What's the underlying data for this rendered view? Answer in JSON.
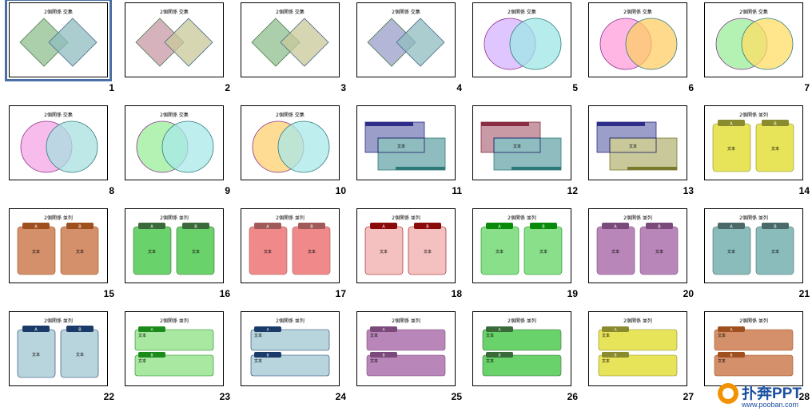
{
  "slides": [
    {
      "number": "1",
      "type": "diamond",
      "c1": "#8fbf8f",
      "c2": "#8fbcbf",
      "title": "2個関係 交集"
    },
    {
      "number": "2",
      "type": "diamond",
      "c1": "#c89aa6",
      "c2": "#c8c89a",
      "title": "2個関係 交集"
    },
    {
      "number": "3",
      "type": "diamond",
      "c1": "#8fbf8f",
      "c2": "#c8c89a",
      "title": "2個関係 交集"
    },
    {
      "number": "4",
      "type": "diamond",
      "c1": "#9a9ec8",
      "c2": "#8fbcbf",
      "title": "2個関係 交集"
    },
    {
      "number": "5",
      "type": "circle",
      "c1": "#d6b3ff",
      "c2": "#9fe6e6",
      "title": "2個関係 交集"
    },
    {
      "number": "6",
      "type": "circle",
      "c1": "#ff9edc",
      "c2": "#ffcc66",
      "title": "2個関係 交集"
    },
    {
      "number": "7",
      "type": "circle",
      "c1": "#99ee99",
      "c2": "#ffdd66",
      "title": "2個関係 交集"
    },
    {
      "number": "8",
      "type": "circle",
      "c1": "#f5a6e6",
      "c2": "#a8e0e0",
      "title": "2個関係 交集"
    },
    {
      "number": "9",
      "type": "circle",
      "c1": "#99ee99",
      "c2": "#a8e8e8",
      "title": "2個関係 交集"
    },
    {
      "number": "10",
      "type": "circle",
      "c1": "#ffd070",
      "c2": "#a8e8e8",
      "title": "2個関係 交集"
    },
    {
      "number": "11",
      "type": "rect",
      "c1": "#9a9ec8",
      "c2": "#8fbcbf",
      "accent": "#2e2e8a",
      "accent2": "#2e7a7a",
      "title": "文本"
    },
    {
      "number": "12",
      "type": "rect",
      "c1": "#c89aa6",
      "c2": "#8fbcbf",
      "accent": "#8a2e44",
      "accent2": "#2e7a7a",
      "title": "文本"
    },
    {
      "number": "13",
      "type": "rect",
      "c1": "#9a9ec8",
      "c2": "#c8c89a",
      "accent": "#2e2e8a",
      "accent2": "#7a7a2e",
      "title": "文本"
    },
    {
      "number": "14",
      "type": "card",
      "c1": "#e8e45a",
      "accent": "#8a8a2e",
      "title": "2個関係 並列",
      "label_a": "A",
      "label_b": "B",
      "body": "文本"
    },
    {
      "number": "15",
      "type": "card",
      "c1": "#d4906a",
      "accent": "#a0501e",
      "title": "2個関係 並列",
      "label_a": "A",
      "label_b": "B",
      "body": "文本"
    },
    {
      "number": "16",
      "type": "card",
      "c1": "#6ad26a",
      "accent": "#3a6a3a",
      "title": "2個関係 並列",
      "label_a": "A",
      "label_b": "B",
      "body": "文本"
    },
    {
      "number": "17",
      "type": "card",
      "c1": "#f08a8a",
      "accent": "#a05a5a",
      "title": "2個関係 並列",
      "label_a": "A",
      "label_b": "B",
      "body": "文本"
    },
    {
      "number": "18",
      "type": "card",
      "c1": "#f5c0c0",
      "accent": "#8a0a0a",
      "title": "2個関係 並列",
      "label_a": "A",
      "label_b": "B",
      "body": "文本"
    },
    {
      "number": "19",
      "type": "card",
      "c1": "#8ae08a",
      "accent": "#0a8a0a",
      "title": "2個関係 並列",
      "label_a": "A",
      "label_b": "B",
      "body": "文本"
    },
    {
      "number": "20",
      "type": "card",
      "c1": "#b886b8",
      "accent": "#7a4a7a",
      "title": "2個関係 並列",
      "label_a": "A",
      "label_b": "B",
      "body": "文本"
    },
    {
      "number": "21",
      "type": "card",
      "c1": "#8abcbc",
      "accent": "#4a6a6a",
      "title": "2個関係 並列",
      "label_a": "A",
      "label_b": "B",
      "body": "文本"
    },
    {
      "number": "22",
      "type": "card",
      "c1": "#b8d4dc",
      "accent": "#1a3a6a",
      "title": "2個関係 並列",
      "label_a": "A",
      "label_b": "B",
      "body": "文本"
    },
    {
      "number": "23",
      "type": "bar",
      "c1": "#a8e8a0",
      "accent": "#1a8a1a",
      "title": "2個関係 並列",
      "label_a": "A",
      "label_b": "B",
      "body": "文本"
    },
    {
      "number": "24",
      "type": "bar",
      "c1": "#b8d4dc",
      "accent": "#1a3a6a",
      "title": "2個関係 並列",
      "label_a": "A",
      "label_b": "B",
      "body": "文本"
    },
    {
      "number": "25",
      "type": "bar",
      "c1": "#b886b8",
      "accent": "#7a4a7a",
      "title": "2個関係 並列",
      "label_a": "A",
      "label_b": "B",
      "body": "文本"
    },
    {
      "number": "26",
      "type": "bar",
      "c1": "#6ad26a",
      "accent": "#3a6a3a",
      "title": "2個関係 並列",
      "label_a": "A",
      "label_b": "B",
      "body": "文本"
    },
    {
      "number": "27",
      "type": "bar",
      "c1": "#e8e45a",
      "accent": "#8a8a2e",
      "title": "2個関係 並列",
      "label_a": "A",
      "label_b": "B",
      "body": "文本"
    },
    {
      "number": "28",
      "type": "bar",
      "c1": "#d4906a",
      "accent": "#a0501e",
      "title": "2個関係 並列",
      "label_a": "A",
      "label_b": "B",
      "body": "文本"
    }
  ],
  "selected_slide": "1",
  "logo": {
    "name": "扑奔PPT",
    "url": "www.pooban.com"
  }
}
